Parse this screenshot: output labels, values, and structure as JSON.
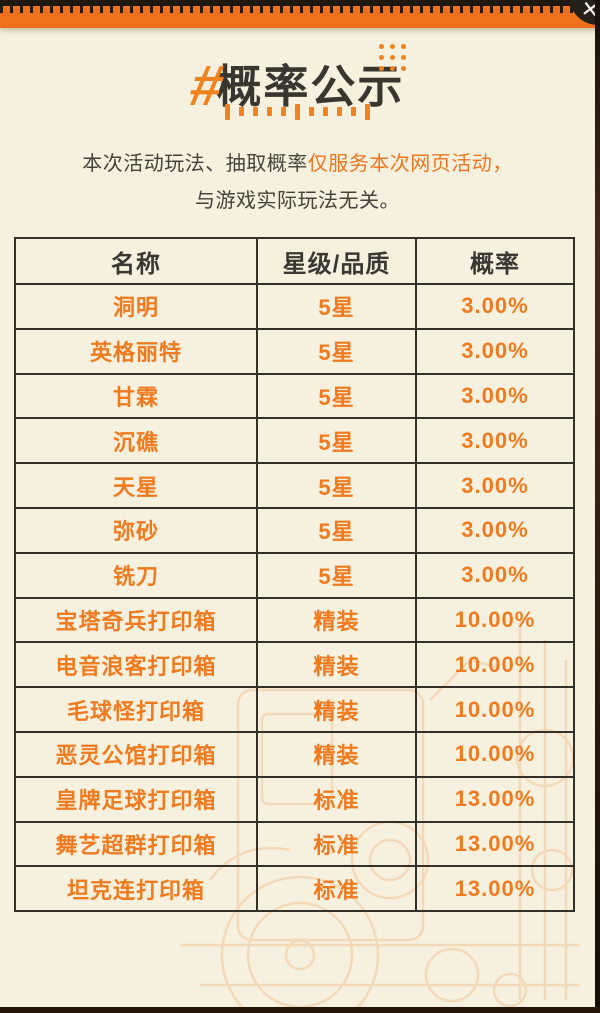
{
  "page": {
    "title": "概率公示",
    "hash_symbol": "#",
    "close_icon": "✕"
  },
  "notice": {
    "line1_prefix": "本次活动玩法、抽取概率",
    "line1_highlight": "仅服务本次网页活动，",
    "line2": "与游戏实际玩法无关。"
  },
  "table": {
    "headers": [
      "名称",
      "星级/品质",
      "概率"
    ],
    "rows": [
      [
        "洞明",
        "5星",
        "3.00%"
      ],
      [
        "英格丽特",
        "5星",
        "3.00%"
      ],
      [
        "甘霖",
        "5星",
        "3.00%"
      ],
      [
        "沉礁",
        "5星",
        "3.00%"
      ],
      [
        "天星",
        "5星",
        "3.00%"
      ],
      [
        "弥砂",
        "5星",
        "3.00%"
      ],
      [
        "铣刀",
        "5星",
        "3.00%"
      ],
      [
        "宝塔奇兵打印箱",
        "精装",
        "10.00%"
      ],
      [
        "电音浪客打印箱",
        "精装",
        "10.00%"
      ],
      [
        "毛球怪打印箱",
        "精装",
        "10.00%"
      ],
      [
        "恶灵公馆打印箱",
        "精装",
        "10.00%"
      ],
      [
        "皇牌足球打印箱",
        "标准",
        "13.00%"
      ],
      [
        "舞艺超群打印箱",
        "标准",
        "13.00%"
      ],
      [
        "坦克连打印箱",
        "标准",
        "13.00%"
      ]
    ]
  },
  "colors": {
    "accent_orange": "#ef7a1f",
    "top_bar_orange": "#f1701d",
    "background_cream": "#f6f1de",
    "text_dark": "#3b3834",
    "table_border": "#33302a",
    "edge_dark": "#241509"
  }
}
